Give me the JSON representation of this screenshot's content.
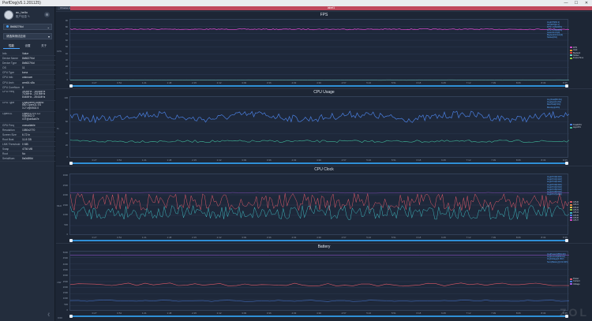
{
  "window": {
    "title": "PerfDog(v5.1.201125)",
    "controls": [
      "—",
      "☐",
      "✕"
    ]
  },
  "user": {
    "name": "ac_hello",
    "edit_label": "账户信息 ✎",
    "settings_icon": "gear-icon"
  },
  "device_select": {
    "value": "8b8627f4d"
  },
  "app_select": {
    "value": "请选择测试应用"
  },
  "sidebar_tabs": [
    {
      "label": "性能",
      "active": true
    },
    {
      "label": "设置",
      "active": false
    },
    {
      "label": "关于",
      "active": false
    }
  ],
  "device_info": [
    {
      "key": "Info",
      "value": "Value"
    },
    {
      "key": "Device Name",
      "value": "8b8627f4d"
    },
    {
      "key": "Device Type",
      "value": "8b8627f4d"
    },
    {
      "key": "OS",
      "value": "11"
    },
    {
      "key": "CPU Type",
      "value": "kona"
    },
    {
      "key": "CPU Info",
      "value": "unknown"
    },
    {
      "key": "CPU Arch",
      "value": "arm64-v8a"
    },
    {
      "key": "CPU CoreNum",
      "value": "8"
    },
    {
      "key": "CPU Freq",
      "value": "300MHz - 1804MHz\n710MHz - 2419MHz\n844MHz - 2841MHz",
      "tall": true
    },
    {
      "key": "GPU Type",
      "value": "Qualcomm Adreno\n650 OpenGL ES\n3.2 V@0502.0",
      "tall": true
    },
    {
      "key": "OpenGL",
      "value": "OpenGL ES 3.2\nV@0502.0\nGIT@cb5ab7e",
      "tall": true
    },
    {
      "key": "GPU Freq",
      "value": "unavailable"
    },
    {
      "key": "Resolution",
      "value": "1080x2770"
    },
    {
      "key": "Screen Size",
      "value": "6.72 in"
    },
    {
      "key": "Root Bust",
      "value": "11.8 GB"
    },
    {
      "key": "LMK Threshold",
      "value": "0 MB"
    },
    {
      "key": "Swap",
      "value": "4736 MB"
    },
    {
      "key": "Root",
      "value": "No"
    },
    {
      "key": "SerialNum",
      "value": "8a0d8f8d"
    }
  ],
  "collapse_label": "《",
  "top": {
    "tag": "Choose App",
    "bar_label": "label1"
  },
  "panels": [
    {
      "name": "fps",
      "title": "FPS",
      "ylabel": "FPS",
      "yticks": [
        "90",
        "80",
        "70",
        "60",
        "50",
        "40",
        "30",
        "20",
        "10",
        "0"
      ],
      "legend_overlay": [
        "AvgFPS[60.2]",
        "Var(FPS)[0.1]",
        "FPS>=18[100%]",
        "FPS>=25[100%]",
        "Jank/10min[0]",
        "BigJank/10min[0]",
        "Stutter[0%]"
      ],
      "side_legend": [
        {
          "label": "FPS",
          "color": "#d247c8"
        },
        {
          "label": "Jank",
          "color": "#f0a030"
        },
        {
          "label": "BigJank",
          "color": "#e03c3c"
        },
        {
          "label": "Stutter",
          "color": "#6fd0c0"
        },
        {
          "label": "FrameTime",
          "color": "#8cc63f"
        }
      ]
    },
    {
      "name": "cpu-usage",
      "title": "CPU Usage",
      "ylabel": "%",
      "yticks": [
        "100",
        "80",
        "60",
        "40",
        "20",
        "0"
      ],
      "legend_overlay": [
        "AvgTotal[58.4%]",
        "AvgApp[14.2%]",
        "MaxTotal[74%]",
        "MaxApp[22%]"
      ],
      "side_legend": [
        {
          "label": "TotalCPU",
          "color": "#4a7fe0"
        },
        {
          "label": "AppCPU",
          "color": "#3fb89a"
        }
      ]
    },
    {
      "name": "cpu-clock",
      "title": "CPU Clock",
      "ylabel": "MHz",
      "yticks": [
        "3000",
        "2500",
        "2000",
        "1500",
        "1000",
        "500",
        "0"
      ],
      "legend_overlay": [
        "AvgCPU0[1302]",
        "AvgCPU1[1302]",
        "AvgCPU2[1302]",
        "AvgCPU3[1302]",
        "AvgCPU4[1540]",
        "AvgCPU5[1540]",
        "AvgCPU6[1540]",
        "AvgCPU7[1820]"
      ],
      "side_legend": [
        {
          "label": "CPU0",
          "color": "#e05a6a"
        },
        {
          "label": "CPU1",
          "color": "#e08a4a"
        },
        {
          "label": "CPU2",
          "color": "#e0c04a"
        },
        {
          "label": "CPU3",
          "color": "#8cc63f"
        },
        {
          "label": "CPU4",
          "color": "#3fb8c0"
        },
        {
          "label": "CPU5",
          "color": "#4a7fe0"
        },
        {
          "label": "CPU6",
          "color": "#a05ae0"
        },
        {
          "label": "CPU7",
          "color": "#d247c8"
        }
      ]
    },
    {
      "name": "battery",
      "title": "Battery",
      "ylabel": "mW",
      "yticks": [
        "5000",
        "4500",
        "4000",
        "3500",
        "3000",
        "2500",
        "2000",
        "1500",
        "1000",
        "500",
        "0"
      ],
      "legend_overlay": [
        "AvgPower[1850mW]",
        "AvgCurrent[452mA]",
        "AvgVoltage[4.09V]",
        "Sum(Battery)[0.0mWh]"
      ],
      "side_legend": [
        {
          "label": "Power",
          "color": "#e05a6a"
        },
        {
          "label": "Current",
          "color": "#4a7fe0"
        },
        {
          "label": "Voltage",
          "color": "#a05ae0"
        }
      ]
    }
  ],
  "x_ticks": [
    "0:00",
    "0:27",
    "0:54",
    "1:21",
    "1:48",
    "2:15",
    "2:42",
    "3:09",
    "3:36",
    "4:03",
    "4:30",
    "4:57",
    "5:24",
    "5:51",
    "6:18",
    "6:45",
    "7:12",
    "7:39",
    "8:06",
    "8:33"
  ],
  "x_end": "8:35",
  "footer": {
    "time": "0:00"
  },
  "watermark": "ZOL"
}
